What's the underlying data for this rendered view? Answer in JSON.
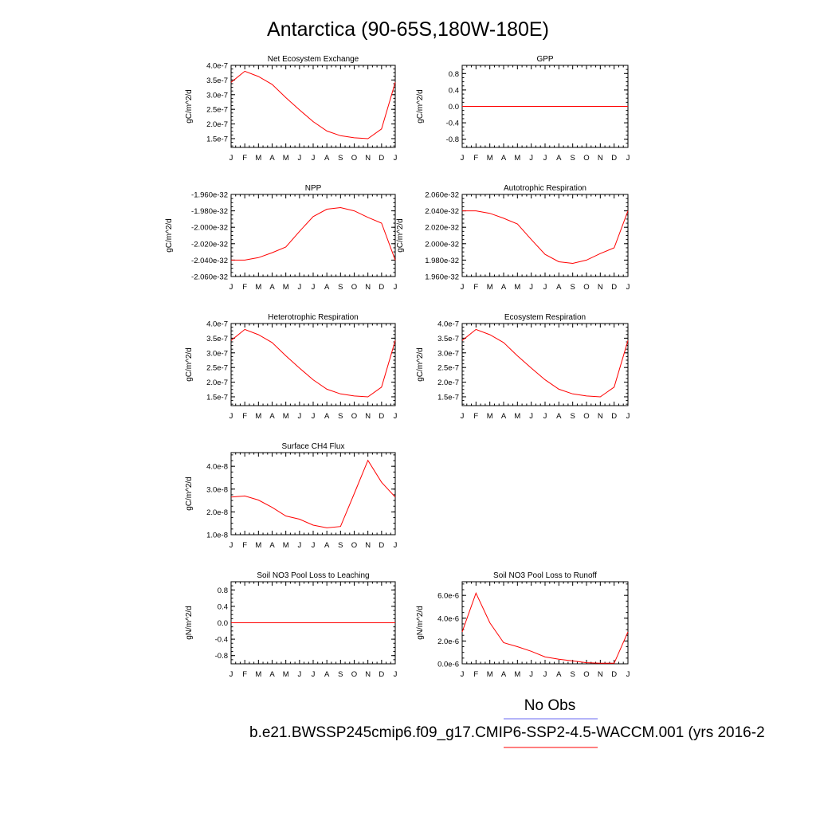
{
  "page": {
    "title": "Antarctica (90-65S,180W-180E)",
    "legend_label": "No Obs",
    "caption": "b.e21.BWSSP245cmip6.f09_g17.CMIP6-SSP2-4.5-WACCM.001 (yrs 2016-2",
    "colors": {
      "model": "#ff0000",
      "obs": "#6a6af0",
      "axis": "#000000"
    }
  },
  "chart_data": [
    {
      "type": "line",
      "title": "Net Ecosystem Exchange",
      "ylabel": "gC/m^2/d",
      "x": [
        "J",
        "F",
        "M",
        "A",
        "M",
        "J",
        "J",
        "A",
        "S",
        "O",
        "N",
        "D",
        "J"
      ],
      "ylim": [
        1.2e-07,
        4e-07
      ],
      "yticks": [
        1.5e-07,
        2e-07,
        2.5e-07,
        3e-07,
        3.5e-07,
        4e-07
      ],
      "ytick_labels": [
        "1.5e-7",
        "2.0e-7",
        "2.5e-7",
        "3.0e-7",
        "3.5e-7",
        "4.0e-7"
      ],
      "series": [
        {
          "values": [
            3.42e-07,
            3.8e-07,
            3.62e-07,
            3.35e-07,
            2.9e-07,
            2.48e-07,
            2.08e-07,
            1.76e-07,
            1.6e-07,
            1.53e-07,
            1.5e-07,
            1.83e-07,
            3.42e-07
          ]
        }
      ]
    },
    {
      "type": "line",
      "title": "GPP",
      "ylabel": "gC/m^2/d",
      "x": [
        "J",
        "F",
        "M",
        "A",
        "M",
        "J",
        "J",
        "A",
        "S",
        "O",
        "N",
        "D",
        "J"
      ],
      "ylim": [
        -1.0,
        1.0
      ],
      "yticks": [
        -0.8,
        -0.4,
        0.0,
        0.4,
        0.8
      ],
      "ytick_labels": [
        "-0.8",
        "-0.4",
        "0.0",
        "0.4",
        "0.8"
      ],
      "series": [
        {
          "values": [
            0,
            0,
            0,
            0,
            0,
            0,
            0,
            0,
            0,
            0,
            0,
            0,
            0
          ]
        }
      ]
    },
    {
      "type": "line",
      "title": "NPP",
      "ylabel": "gC/m^2/d",
      "x": [
        "J",
        "F",
        "M",
        "A",
        "M",
        "J",
        "J",
        "A",
        "S",
        "O",
        "N",
        "D",
        "J"
      ],
      "ylim": [
        -2.06e-32,
        -1.96e-32
      ],
      "yticks": [
        -2.06e-32,
        -2.04e-32,
        -2.02e-32,
        -2e-32,
        -1.98e-32,
        -1.96e-32
      ],
      "ytick_labels": [
        "-2.060e-32",
        "-2.040e-32",
        "-2.020e-32",
        "-2.000e-32",
        "-1.980e-32",
        "-1.960e-32"
      ],
      "series": [
        {
          "values": [
            -2.04e-32,
            -2.04e-32,
            -2.037e-32,
            -2.031e-32,
            -2.024e-32,
            -2.005e-32,
            -1.987e-32,
            -1.978e-32,
            -1.976e-32,
            -1.98e-32,
            -1.988e-32,
            -1.995e-32,
            -2.04e-32
          ]
        }
      ]
    },
    {
      "type": "line",
      "title": "Autotrophic Respiration",
      "ylabel": "gC/m^2/d",
      "x": [
        "J",
        "F",
        "M",
        "A",
        "M",
        "J",
        "J",
        "A",
        "S",
        "O",
        "N",
        "D",
        "J"
      ],
      "ylim": [
        1.96e-32,
        2.06e-32
      ],
      "yticks": [
        1.96e-32,
        1.98e-32,
        2e-32,
        2.02e-32,
        2.04e-32,
        2.06e-32
      ],
      "ytick_labels": [
        "1.960e-32",
        "1.980e-32",
        "2.000e-32",
        "2.020e-32",
        "2.040e-32",
        "2.060e-32"
      ],
      "series": [
        {
          "values": [
            2.04e-32,
            2.04e-32,
            2.037e-32,
            2.031e-32,
            2.024e-32,
            2.005e-32,
            1.987e-32,
            1.978e-32,
            1.976e-32,
            1.98e-32,
            1.988e-32,
            1.995e-32,
            2.04e-32
          ]
        }
      ]
    },
    {
      "type": "line",
      "title": "Heterotrophic Respiration",
      "ylabel": "gC/m^2/d",
      "x": [
        "J",
        "F",
        "M",
        "A",
        "M",
        "J",
        "J",
        "A",
        "S",
        "O",
        "N",
        "D",
        "J"
      ],
      "ylim": [
        1.2e-07,
        4e-07
      ],
      "yticks": [
        1.5e-07,
        2e-07,
        2.5e-07,
        3e-07,
        3.5e-07,
        4e-07
      ],
      "ytick_labels": [
        "1.5e-7",
        "2.0e-7",
        "2.5e-7",
        "3.0e-7",
        "3.5e-7",
        "4.0e-7"
      ],
      "series": [
        {
          "values": [
            3.42e-07,
            3.8e-07,
            3.62e-07,
            3.35e-07,
            2.9e-07,
            2.48e-07,
            2.08e-07,
            1.76e-07,
            1.6e-07,
            1.53e-07,
            1.5e-07,
            1.83e-07,
            3.42e-07
          ]
        }
      ]
    },
    {
      "type": "line",
      "title": "Ecosystem Respiration",
      "ylabel": "gC/m^2/d",
      "x": [
        "J",
        "F",
        "M",
        "A",
        "M",
        "J",
        "J",
        "A",
        "S",
        "O",
        "N",
        "D",
        "J"
      ],
      "ylim": [
        1.2e-07,
        4e-07
      ],
      "yticks": [
        1.5e-07,
        2e-07,
        2.5e-07,
        3e-07,
        3.5e-07,
        4e-07
      ],
      "ytick_labels": [
        "1.5e-7",
        "2.0e-7",
        "2.5e-7",
        "3.0e-7",
        "3.5e-7",
        "4.0e-7"
      ],
      "series": [
        {
          "values": [
            3.42e-07,
            3.8e-07,
            3.62e-07,
            3.35e-07,
            2.9e-07,
            2.48e-07,
            2.08e-07,
            1.76e-07,
            1.6e-07,
            1.53e-07,
            1.5e-07,
            1.83e-07,
            3.42e-07
          ]
        }
      ]
    },
    {
      "type": "line",
      "title": "Surface CH4 Flux",
      "ylabel": "gC/m^2/d",
      "x": [
        "J",
        "F",
        "M",
        "A",
        "M",
        "J",
        "J",
        "A",
        "S",
        "O",
        "N",
        "D",
        "J"
      ],
      "ylim": [
        1e-08,
        4.6e-08
      ],
      "yticks": [
        1e-08,
        2e-08,
        3e-08,
        4e-08
      ],
      "ytick_labels": [
        "1.0e-8",
        "2.0e-8",
        "3.0e-8",
        "4.0e-8"
      ],
      "series": [
        {
          "values": [
            2.65e-08,
            2.7e-08,
            2.52e-08,
            2.2e-08,
            1.82e-08,
            1.68e-08,
            1.42e-08,
            1.3e-08,
            1.36e-08,
            2.8e-08,
            4.26e-08,
            3.3e-08,
            2.65e-08
          ]
        }
      ]
    },
    {
      "type": "line",
      "title": "Soil NO3 Pool Loss to Leaching",
      "ylabel": "gN/m^2/d",
      "x": [
        "J",
        "F",
        "M",
        "A",
        "M",
        "J",
        "J",
        "A",
        "S",
        "O",
        "N",
        "D",
        "J"
      ],
      "ylim": [
        -1.0,
        1.0
      ],
      "yticks": [
        -0.8,
        -0.4,
        0.0,
        0.4,
        0.8
      ],
      "ytick_labels": [
        "-0.8",
        "-0.4",
        "0.0",
        "0.4",
        "0.8"
      ],
      "series": [
        {
          "values": [
            0,
            0,
            0,
            0,
            0,
            0,
            0,
            0,
            0,
            0,
            0,
            0,
            0
          ]
        }
      ]
    },
    {
      "type": "line",
      "title": "Soil NO3 Pool Loss to Runoff",
      "ylabel": "gN/m^2/d",
      "x": [
        "J",
        "F",
        "M",
        "A",
        "M",
        "J",
        "J",
        "A",
        "S",
        "O",
        "N",
        "D",
        "J"
      ],
      "ylim": [
        0,
        7.2e-06
      ],
      "yticks": [
        0,
        2e-06,
        4e-06,
        6e-06
      ],
      "ytick_labels": [
        "0.0e-6",
        "2.0e-6",
        "4.0e-6",
        "6.0e-6"
      ],
      "series": [
        {
          "values": [
            2.8e-06,
            6.2e-06,
            3.6e-06,
            1.85e-06,
            1.5e-06,
            1.1e-06,
            6e-07,
            4e-07,
            2.5e-07,
            1e-07,
            5e-08,
            5e-08,
            2.8e-06
          ]
        }
      ]
    }
  ]
}
